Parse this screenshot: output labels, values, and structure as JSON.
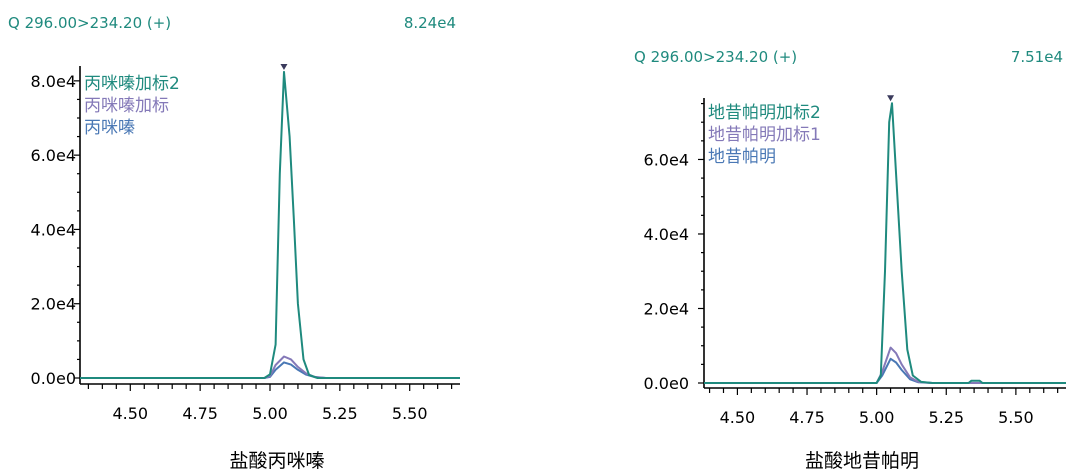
{
  "colors": {
    "teal": "#1f8a7e",
    "purple": "#8479b8",
    "blue": "#4a78b5",
    "marker": "#3a3a5c"
  },
  "chart_data": [
    {
      "type": "line",
      "header": {
        "transition": "Q 296.00>234.20 (+)",
        "max_intensity": "8.24e4"
      },
      "title": "盐酸丙咪嗪",
      "xlabel": "",
      "ylabel": "",
      "xlim": [
        4.32,
        5.68
      ],
      "ylim": [
        -2500,
        84000
      ],
      "yticks": [
        0,
        20000,
        40000,
        60000,
        80000
      ],
      "ytick_labels": [
        "0.0e0",
        "2.0e4",
        "4.0e4",
        "6.0e4",
        "8.0e4"
      ],
      "xticks": [
        4.5,
        4.75,
        5.0,
        5.25,
        5.5
      ],
      "xtick_labels": [
        "4.50",
        "4.75",
        "5.00",
        "5.25",
        "5.50"
      ],
      "peak_marker_x": 5.05,
      "legend_position": "top-left",
      "series": [
        {
          "name": "丙咪嗪加标2",
          "color": "#1f8a7e",
          "x": [
            4.32,
            4.98,
            5.0,
            5.02,
            5.035,
            5.05,
            5.07,
            5.085,
            5.1,
            5.12,
            5.14,
            5.17,
            5.68
          ],
          "y": [
            0,
            0,
            1000,
            9000,
            55000,
            82400,
            65000,
            43000,
            20000,
            5000,
            800,
            0,
            0
          ]
        },
        {
          "name": "丙咪嗪加标",
          "color": "#8479b8",
          "x": [
            4.32,
            4.98,
            5.0,
            5.02,
            5.05,
            5.075,
            5.1,
            5.13,
            5.16,
            5.2,
            5.68
          ],
          "y": [
            0,
            0,
            500,
            3500,
            5800,
            5000,
            3000,
            1200,
            300,
            0,
            0
          ]
        },
        {
          "name": "丙咪嗪",
          "color": "#4a78b5",
          "x": [
            4.32,
            4.98,
            5.0,
            5.02,
            5.05,
            5.075,
            5.1,
            5.13,
            5.16,
            5.2,
            5.68
          ],
          "y": [
            0,
            0,
            300,
            2200,
            4200,
            3600,
            2200,
            900,
            250,
            0,
            0
          ]
        }
      ]
    },
    {
      "type": "line",
      "header": {
        "transition": "Q 296.00>234.20 (+)",
        "max_intensity": "7.51e4"
      },
      "title": "盐酸地昔帕明",
      "xlabel": "",
      "ylabel": "",
      "xlim": [
        4.38,
        5.68
      ],
      "ylim": [
        -1500,
        76500
      ],
      "yticks": [
        0,
        20000,
        40000,
        60000
      ],
      "ytick_labels": [
        "0.0e0",
        "2.0e4",
        "4.0e4",
        "6.0e4"
      ],
      "xticks": [
        4.5,
        4.75,
        5.0,
        5.25,
        5.5
      ],
      "xtick_labels": [
        "4.50",
        "4.75",
        "5.00",
        "5.25",
        "5.50"
      ],
      "peak_marker_x": 5.05,
      "legend_position": "top-left",
      "series": [
        {
          "name": "地昔帕明加标2",
          "color": "#1f8a7e",
          "x": [
            4.38,
            5.0,
            5.015,
            5.03,
            5.045,
            5.055,
            5.07,
            5.09,
            5.11,
            5.13,
            5.16,
            5.2,
            5.33,
            5.34,
            5.37,
            5.38,
            5.68
          ],
          "y": [
            0,
            0,
            2000,
            30000,
            70000,
            75100,
            56000,
            30000,
            9000,
            2000,
            300,
            0,
            0,
            600,
            600,
            0,
            0
          ]
        },
        {
          "name": "地昔帕明加标1",
          "color": "#8479b8",
          "x": [
            4.38,
            5.0,
            5.02,
            5.05,
            5.07,
            5.09,
            5.12,
            5.15,
            5.2,
            5.68
          ],
          "y": [
            0,
            0,
            3000,
            9500,
            8000,
            5000,
            1500,
            300,
            0,
            0
          ]
        },
        {
          "name": "地昔帕明",
          "color": "#4a78b5",
          "x": [
            4.38,
            5.0,
            5.02,
            5.05,
            5.07,
            5.09,
            5.12,
            5.15,
            5.2,
            5.68
          ],
          "y": [
            0,
            0,
            2000,
            6500,
            5500,
            3500,
            1000,
            200,
            0,
            0
          ]
        }
      ]
    }
  ]
}
